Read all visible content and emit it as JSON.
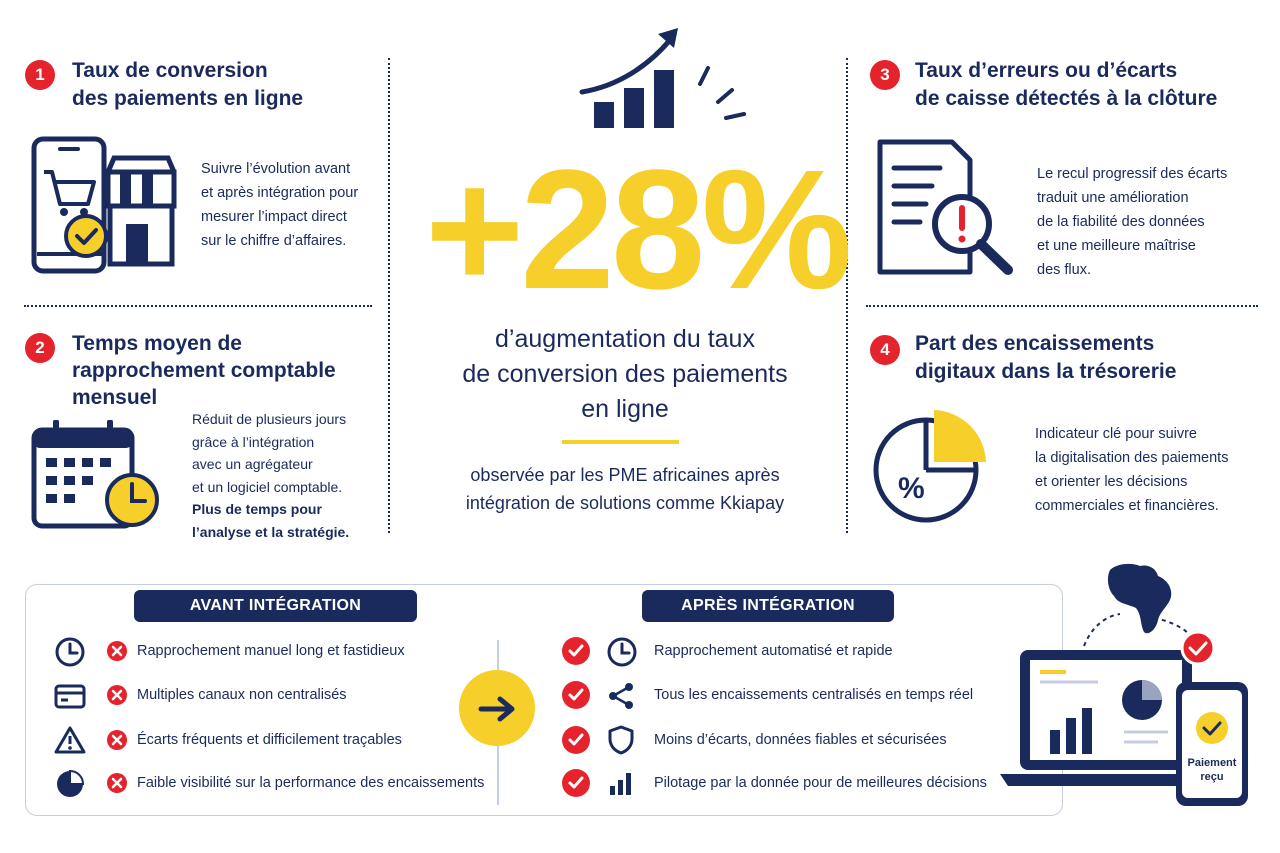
{
  "kpis": [
    {
      "number": "1",
      "title_line1": "Taux de conversion",
      "title_line2": "des paiements en ligne",
      "desc": [
        "Suivre l’évolution avant",
        "et après intégration pour",
        "mesurer l’impact direct",
        "sur le chiffre d’affaires."
      ]
    },
    {
      "number": "2",
      "title_line1": "Temps moyen de",
      "title_line2": "rapprochement comptable",
      "title_line3": "mensuel",
      "desc": [
        "Réduit de plusieurs jours",
        "grâce à l’intégration",
        "avec un agrégateur",
        "et un logiciel comptable."
      ],
      "desc_bold": [
        "Plus de temps pour",
        "l’analyse et la stratégie."
      ]
    },
    {
      "number": "3",
      "title_line1": "Taux d’erreurs ou d’écarts",
      "title_line2": "de caisse détectés à la clôture",
      "desc": [
        "Le recul progressif des écarts",
        "traduit une amélioration",
        "de la fiabilité des données",
        "et une meilleure maîtrise",
        "des flux."
      ]
    },
    {
      "number": "4",
      "title_line1": "Part des encaissements",
      "title_line2": "digitaux dans la trésorerie",
      "desc": [
        "Indicateur clé pour suivre",
        "la digitalisation des paiements",
        "et orienter les décisions",
        "commerciales et financières."
      ],
      "pie_label": "%"
    }
  ],
  "hero": {
    "value": "+28%",
    "subtitle": [
      "d’augmentation du taux",
      "de conversion des paiements",
      "en ligne"
    ],
    "observed": [
      "observée par les PME africaines après",
      "intégration de solutions comme Kkiapay"
    ]
  },
  "comparison": {
    "before_label": "AVANT INTÉGRATION",
    "after_label": "APRÈS INTÉGRATION",
    "before_items": [
      {
        "icon": "clock-icon",
        "text": "Rapprochement manuel long et fastidieux"
      },
      {
        "icon": "card-icon",
        "text": "Multiples canaux non centralisés"
      },
      {
        "icon": "warning-icon",
        "text": "Écarts fréquents et difficilement traçables"
      },
      {
        "icon": "pie-icon",
        "text": "Faible visibilité sur la performance des encaissements"
      }
    ],
    "after_items": [
      {
        "icon": "clock-icon",
        "text": "Rapprochement automatisé et rapide"
      },
      {
        "icon": "share-icon",
        "text": "Tous les encaissements centralisés en temps réel"
      },
      {
        "icon": "shield-icon",
        "text": "Moins d’écarts, données fiables et sécurisées"
      },
      {
        "icon": "bar-chart-icon",
        "text": "Pilotage par la donnée pour de meilleures décisions"
      }
    ],
    "payment_label_line1": "Paiement",
    "payment_label_line2": "reçu"
  },
  "colors": {
    "navy": "#1b2a5c",
    "yellow": "#f6cf2a",
    "red": "#e5232d"
  }
}
